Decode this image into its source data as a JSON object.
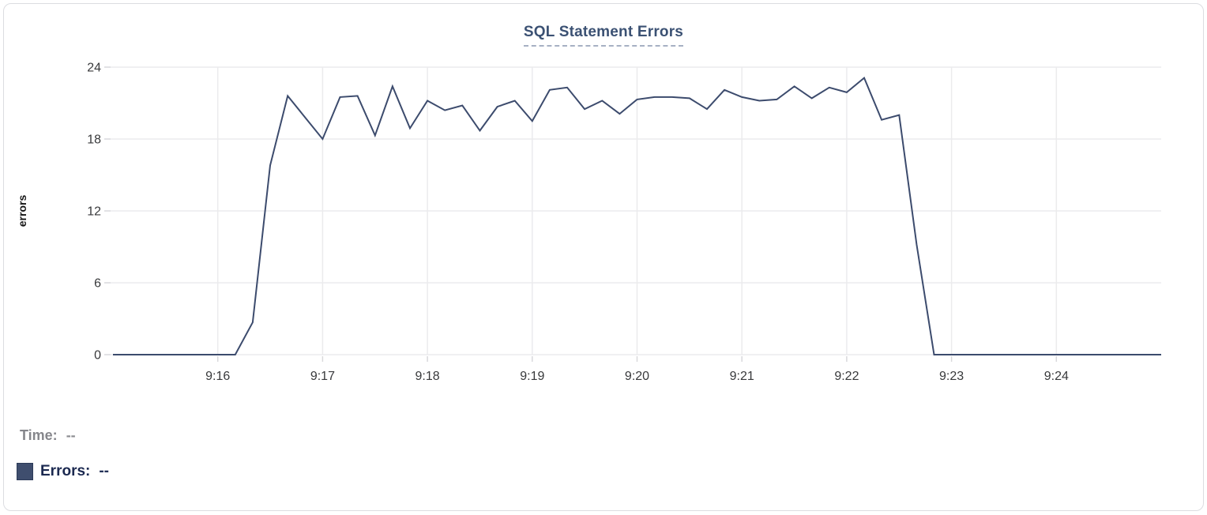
{
  "card": {
    "title": "SQL Statement Errors"
  },
  "legend": {
    "time_label": "Time:",
    "time_value": "--",
    "errors_label": "Errors:",
    "errors_value": "--"
  },
  "colors": {
    "line": "#3c4b6d",
    "swatch": "#3f4e6e",
    "title": "#3b5173",
    "grid": "#ebebed",
    "tick_mark": "#d9d9dc",
    "tick_text": "#38393b",
    "time_label_gray": "#85868b",
    "errors_label_navy": "#1b2950"
  },
  "chart_data": {
    "type": "line",
    "title": "SQL Statement Errors",
    "xlabel": "",
    "ylabel": "errors",
    "ylim": [
      0,
      24
    ],
    "yticks": [
      0,
      6,
      12,
      18,
      24
    ],
    "xticks": [
      "9:16",
      "9:17",
      "9:18",
      "9:19",
      "9:20",
      "9:21",
      "9:22",
      "9:23",
      "9:24"
    ],
    "grid": true,
    "legend_position": "bottom",
    "series_name": "Errors",
    "x": [
      "9:15:00",
      "9:15:10",
      "9:15:20",
      "9:15:30",
      "9:15:40",
      "9:15:50",
      "9:16:00",
      "9:16:10",
      "9:16:20",
      "9:16:30",
      "9:16:40",
      "9:16:50",
      "9:17:00",
      "9:17:10",
      "9:17:20",
      "9:17:30",
      "9:17:40",
      "9:17:50",
      "9:18:00",
      "9:18:10",
      "9:18:20",
      "9:18:30",
      "9:18:40",
      "9:18:50",
      "9:19:00",
      "9:19:10",
      "9:19:20",
      "9:19:30",
      "9:19:40",
      "9:19:50",
      "9:20:00",
      "9:20:10",
      "9:20:20",
      "9:20:30",
      "9:20:40",
      "9:20:50",
      "9:21:00",
      "9:21:10",
      "9:21:20",
      "9:21:30",
      "9:21:40",
      "9:21:50",
      "9:22:00",
      "9:22:10",
      "9:22:20",
      "9:22:30",
      "9:22:40",
      "9:22:50",
      "9:23:00",
      "9:23:10",
      "9:23:20",
      "9:23:30",
      "9:23:40",
      "9:23:50",
      "9:24:00",
      "9:24:10",
      "9:24:20",
      "9:24:30",
      "9:24:40",
      "9:24:50",
      "9:25:00"
    ],
    "values": [
      0,
      0,
      0,
      0,
      0,
      0,
      0,
      0,
      2.7,
      15.8,
      21.6,
      19.8,
      18,
      21.5,
      21.6,
      18.3,
      22.4,
      18.9,
      21.2,
      20.4,
      20.8,
      18.7,
      20.7,
      21.2,
      19.5,
      22.1,
      22.3,
      20.5,
      21.2,
      20.1,
      21.3,
      21.5,
      21.5,
      21.4,
      20.5,
      22.1,
      21.5,
      21.2,
      21.3,
      22.4,
      21.4,
      22.3,
      21.9,
      23.1,
      19.6,
      20,
      9.2,
      0,
      0,
      0,
      0,
      0,
      0,
      0,
      0,
      0,
      0,
      0,
      0,
      0,
      0
    ]
  }
}
